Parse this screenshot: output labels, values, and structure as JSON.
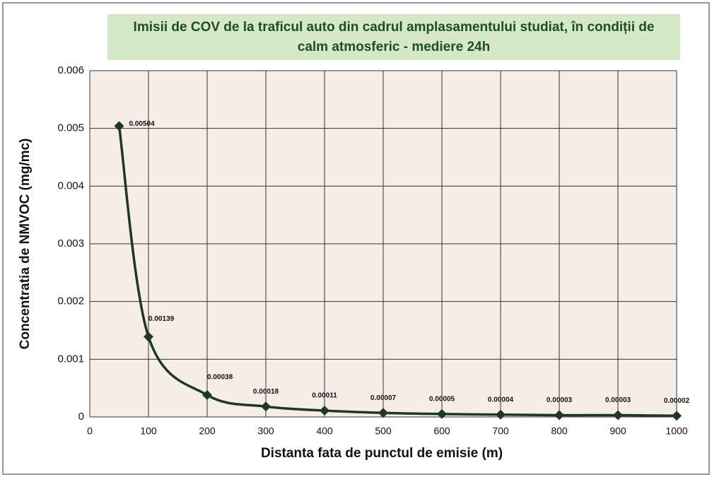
{
  "chart_data": {
    "type": "line",
    "title": "Imisii de COV de la traficul auto din cadrul amplasamentului studiat, în condiții de calm atmosferic - mediere 24h",
    "x_label": "Distanta fata de punctul de emisie (m)",
    "y_label": "Concentratia de NMVOC (mg/mc)",
    "x": [
      50,
      100,
      200,
      300,
      400,
      500,
      600,
      700,
      800,
      900,
      1000
    ],
    "series": [
      {
        "name": "NMVOC",
        "color": "#1e3a1e",
        "values": [
          0.00504,
          0.00139,
          0.00038,
          0.00018,
          0.00011,
          7e-05,
          5e-05,
          4e-05,
          3e-05,
          3e-05,
          2e-05
        ]
      }
    ],
    "xlim": [
      0,
      1000
    ],
    "xticks": [
      0,
      100,
      200,
      300,
      400,
      500,
      600,
      700,
      800,
      900,
      1000
    ],
    "ylim": [
      0,
      0.006
    ],
    "yticks": [
      0,
      0.001,
      0.002,
      0.003,
      0.004,
      0.005,
      0.006
    ],
    "grid": true
  }
}
